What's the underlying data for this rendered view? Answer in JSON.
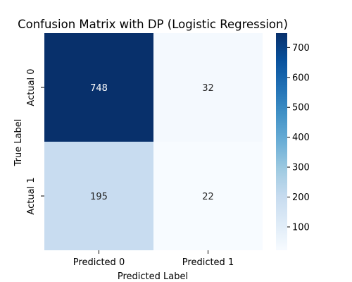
{
  "chart_data": {
    "type": "heatmap",
    "title": "Confusion Matrix with DP (Logistic Regression)",
    "xlabel": "Predicted Label",
    "ylabel": "True Label",
    "x_categories": [
      "Predicted 0",
      "Predicted 1"
    ],
    "y_categories": [
      "Actual 0",
      "Actual 1"
    ],
    "values": [
      [
        748,
        32
      ],
      [
        195,
        22
      ]
    ],
    "colormap": "Blues",
    "colorbar": {
      "range": [
        22,
        748
      ],
      "ticks": [
        100,
        200,
        300,
        400,
        500,
        600,
        700
      ]
    },
    "colors": {
      "cmap_low": "#f7fbff",
      "cmap_high": "#08306b",
      "text_dark": "#262626",
      "text_light": "#ffffff"
    }
  }
}
